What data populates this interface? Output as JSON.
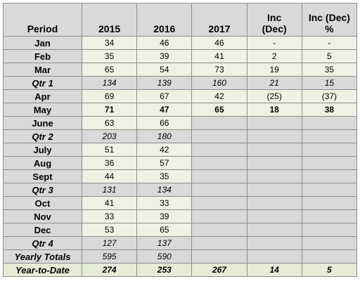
{
  "table": {
    "header": [
      "Period",
      "2015",
      "2016",
      "2017",
      [
        "Inc",
        "(Dec)"
      ],
      [
        "Inc (Dec)",
        "%"
      ]
    ],
    "rows": [
      [
        "Jan",
        "34",
        "46",
        "46",
        "-",
        "-"
      ],
      [
        "Feb",
        "35",
        "39",
        "41",
        "2",
        "5"
      ],
      [
        "Mar",
        "65",
        "54",
        "73",
        "19",
        "35"
      ],
      [
        "Qtr 1",
        "134",
        "139",
        "160",
        "21",
        "15"
      ],
      [
        "Apr",
        "69",
        "67",
        "42",
        "(25)",
        "(37)"
      ],
      [
        "May",
        "71",
        "47",
        "65",
        "18",
        "38"
      ],
      [
        "June",
        "63",
        "66"
      ],
      [
        "Qtr 2",
        "203",
        "180"
      ],
      [
        "July",
        "51",
        "42"
      ],
      [
        "Aug",
        "36",
        "57"
      ],
      [
        "Sept",
        "44",
        "35"
      ],
      [
        "Qtr 3",
        "131",
        "134"
      ],
      [
        "Oct",
        "41",
        "33"
      ],
      [
        "Nov",
        "33",
        "39"
      ],
      [
        "Dec",
        "53",
        "65"
      ],
      [
        "Qtr 4",
        "127",
        "137"
      ],
      [
        "Yearly Totals",
        "595",
        "590"
      ],
      [
        "Year-to-Date",
        "274",
        "253",
        "267",
        "14",
        "5"
      ]
    ]
  }
}
